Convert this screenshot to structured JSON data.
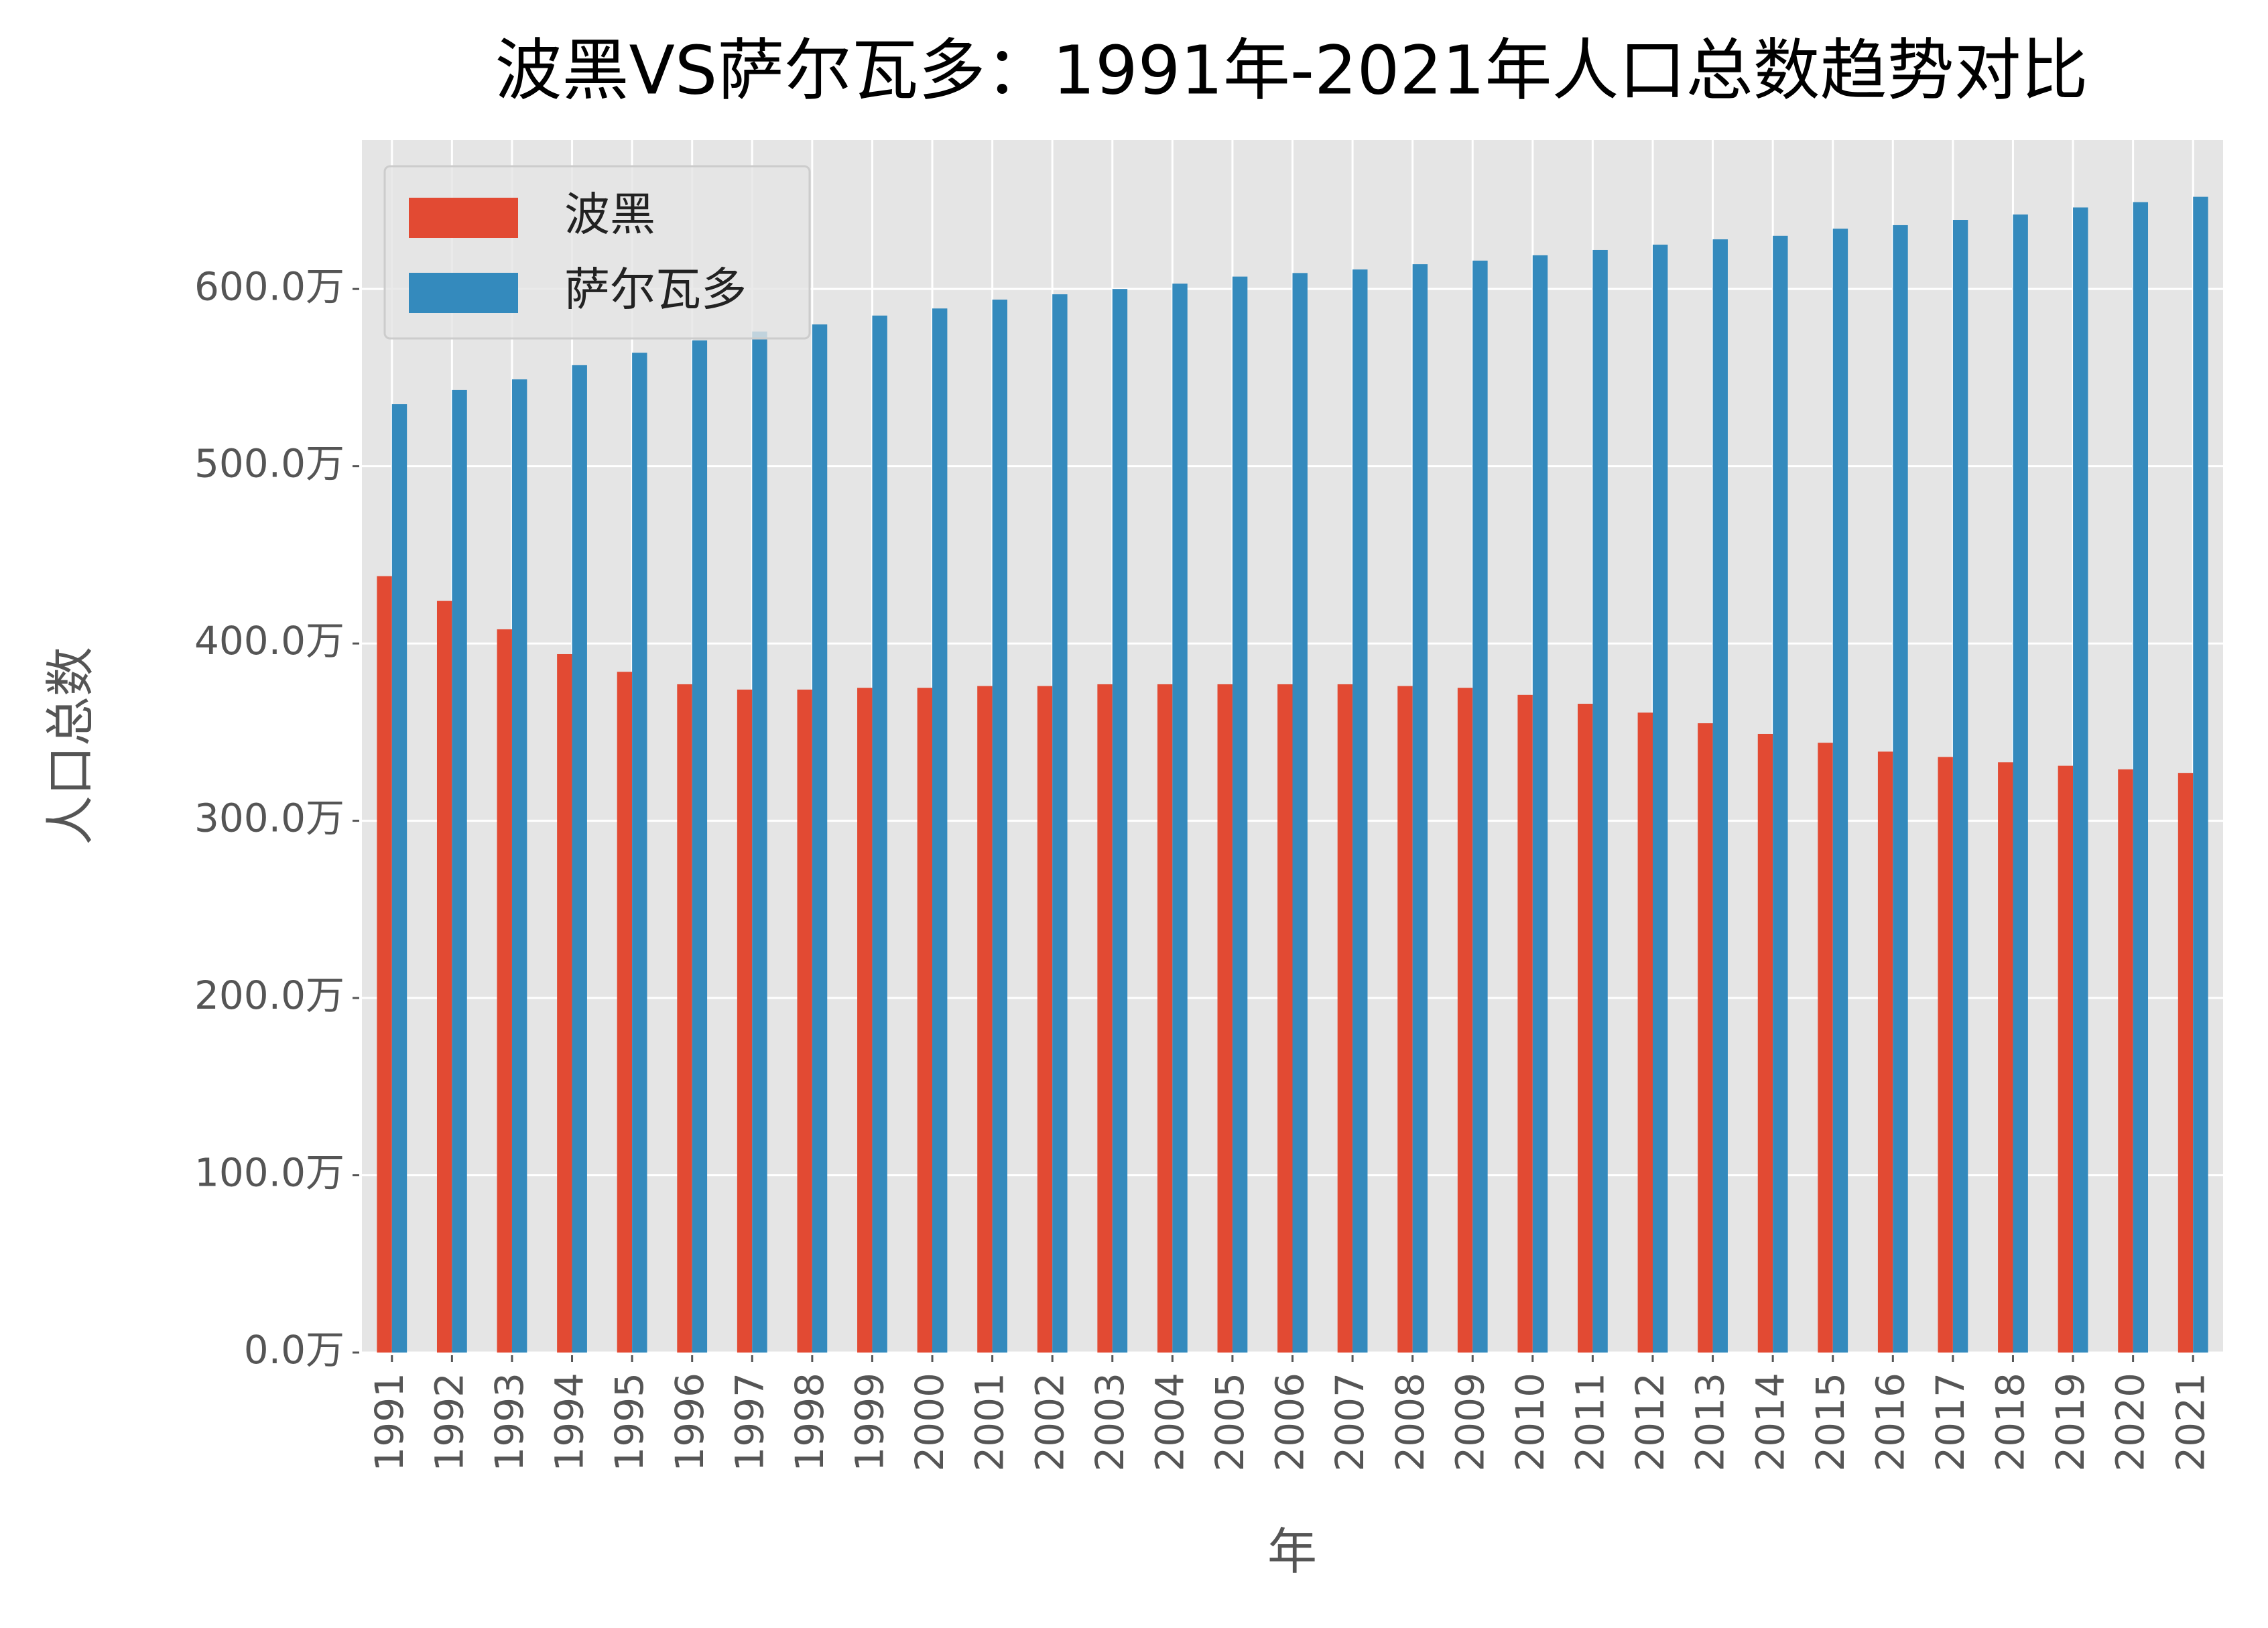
{
  "chart_data": {
    "type": "bar",
    "title": "波黑VS萨尔瓦多：1991年-2021年人口总数趋势对比",
    "x_label": "年",
    "y_label": "人口总数",
    "categories": [
      "1991",
      "1992",
      "1993",
      "1994",
      "1995",
      "1996",
      "1997",
      "1998",
      "1999",
      "2000",
      "2001",
      "2002",
      "2003",
      "2004",
      "2005",
      "2006",
      "2007",
      "2008",
      "2009",
      "2010",
      "2011",
      "2012",
      "2013",
      "2014",
      "2015",
      "2016",
      "2017",
      "2018",
      "2019",
      "2020",
      "2021"
    ],
    "series": [
      {
        "name": "波黑",
        "color": "#E24A33",
        "values": [
          438,
          424,
          408,
          394,
          384,
          377,
          374,
          374,
          375,
          375,
          376,
          376,
          377,
          377,
          377,
          377,
          377,
          376,
          375,
          371,
          366,
          361,
          355,
          349,
          344,
          339,
          336,
          333,
          331,
          329,
          327
        ]
      },
      {
        "name": "萨尔瓦多",
        "color": "#348ABD",
        "values": [
          535,
          543,
          549,
          557,
          564,
          571,
          576,
          580,
          585,
          589,
          594,
          597,
          600,
          603,
          607,
          609,
          611,
          614,
          616,
          619,
          622,
          625,
          628,
          630,
          634,
          636,
          639,
          642,
          646,
          649,
          652
        ]
      }
    ],
    "ylim": [
      0,
      684
    ],
    "yticks": [
      {
        "value": 0,
        "label": "0.0万"
      },
      {
        "value": 100,
        "label": "100.0万"
      },
      {
        "value": 200,
        "label": "200.0万"
      },
      {
        "value": 300,
        "label": "300.0万"
      },
      {
        "value": 400,
        "label": "400.0万"
      },
      {
        "value": 500,
        "label": "500.0万"
      },
      {
        "value": 600,
        "label": "600.0万"
      }
    ],
    "grid": true,
    "legend": "upper left"
  }
}
